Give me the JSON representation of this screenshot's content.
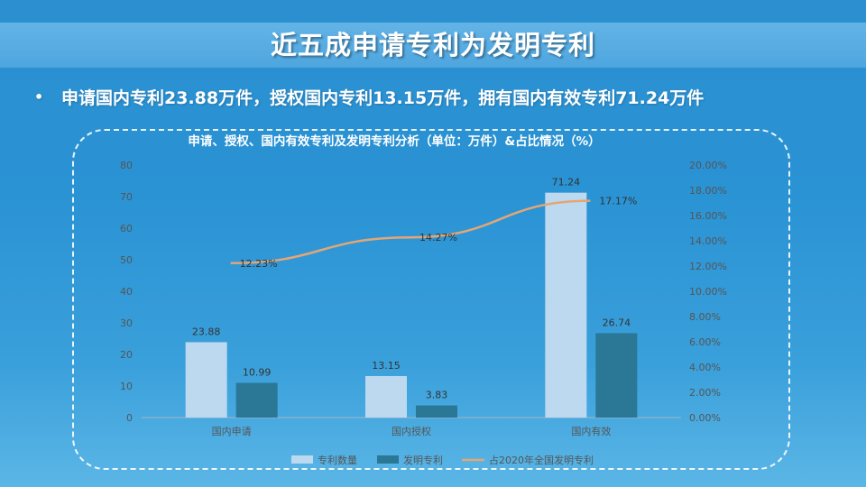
{
  "slide": {
    "title": "近五成申请专利为发明专利",
    "bullet": "申请国内专利23.88万件，授权国内专利13.15万件，拥有国内有效专利71.24万件"
  },
  "colors": {
    "bar_total": "#bcd9ef",
    "bar_invention": "#2a7796",
    "line_share": "#e3a676",
    "axis_text": "#555555",
    "label_text": "#333333",
    "title_text": "#ffffff"
  },
  "chart_data": {
    "type": "bar",
    "title": "申请、授权、国内有效专利及发明专利分析（单位：万件）&占比情况（%）",
    "categories": [
      "国内申请",
      "国内授权",
      "国内有效"
    ],
    "series": [
      {
        "name": "专利数量",
        "type": "bar",
        "axis": "left",
        "values": [
          23.88,
          13.15,
          71.24
        ],
        "labels": [
          "23.88",
          "13.15",
          "71.24"
        ]
      },
      {
        "name": "发明专利",
        "type": "bar",
        "axis": "left",
        "values": [
          10.99,
          3.83,
          26.74
        ],
        "labels": [
          "10.99",
          "3.83",
          "26.74"
        ]
      },
      {
        "name": "占2020年全国发明专利",
        "type": "line",
        "axis": "right",
        "values": [
          12.23,
          14.27,
          17.17
        ],
        "labels": [
          "12.23%",
          "14.27%",
          "17.17%"
        ]
      }
    ],
    "ylim": [
      0,
      80
    ],
    "yticks": [
      "0",
      "10",
      "20",
      "30",
      "40",
      "50",
      "60",
      "70",
      "80"
    ],
    "y2lim": [
      0,
      20
    ],
    "y2ticks": [
      "0.00%",
      "2.00%",
      "4.00%",
      "6.00%",
      "8.00%",
      "10.00%",
      "12.00%",
      "14.00%",
      "16.00%",
      "18.00%",
      "20.00%"
    ],
    "grid": false,
    "legend": "bottom"
  }
}
